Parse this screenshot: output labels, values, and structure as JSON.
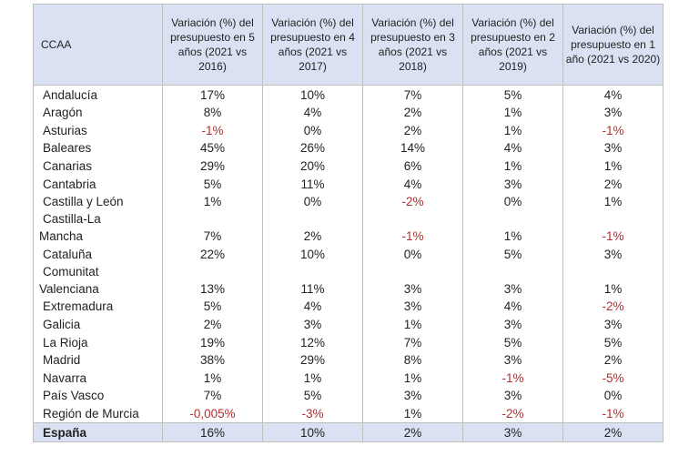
{
  "table": {
    "headers": [
      "CCAA",
      "Variación (%) del presupuesto en 5 años (2021 vs 2016)",
      "Variación (%) del presupuesto en 4 años (2021 vs 2017)",
      "Variación (%) del presupuesto en 3 años (2021 vs 2018)",
      "Variación (%) del presupuesto en 2 años (2021 vs 2019)",
      "Variación (%) del presupuesto en 1 año (2021 vs 2020)"
    ],
    "rows": [
      {
        "name": "Andalucía",
        "values": [
          "17%",
          "10%",
          "7%",
          "5%",
          "4%"
        ]
      },
      {
        "name": "Aragón",
        "values": [
          "8%",
          "4%",
          "2%",
          "1%",
          "3%"
        ]
      },
      {
        "name": "Asturias",
        "values": [
          "-1%",
          "0%",
          "2%",
          "1%",
          "-1%"
        ]
      },
      {
        "name": "Baleares",
        "values": [
          "45%",
          "26%",
          "14%",
          "4%",
          "3%"
        ]
      },
      {
        "name": "Canarias",
        "values": [
          "29%",
          "20%",
          "6%",
          "1%",
          "1%"
        ]
      },
      {
        "name": "Cantabria",
        "values": [
          "5%",
          "11%",
          "4%",
          "3%",
          "2%"
        ]
      },
      {
        "name": "Castilla y León",
        "values": [
          "1%",
          "0%",
          "-2%",
          "0%",
          "1%"
        ]
      },
      {
        "name_line1": "Castilla-La",
        "name_line2": "Mancha",
        "values": [
          "7%",
          "2%",
          "-1%",
          "1%",
          "-1%"
        ]
      },
      {
        "name": "Cataluña",
        "values": [
          "22%",
          "10%",
          "0%",
          "5%",
          "3%"
        ]
      },
      {
        "name_line1": "Comunitat",
        "name_line2": "Valenciana",
        "values": [
          "13%",
          "11%",
          "3%",
          "3%",
          "1%"
        ]
      },
      {
        "name": "Extremadura",
        "values": [
          "5%",
          "4%",
          "3%",
          "4%",
          "-2%"
        ]
      },
      {
        "name": "Galicia",
        "values": [
          "2%",
          "3%",
          "1%",
          "3%",
          "3%"
        ]
      },
      {
        "name": "La Rioja",
        "values": [
          "19%",
          "12%",
          "7%",
          "5%",
          "5%"
        ]
      },
      {
        "name": "Madrid",
        "values": [
          "38%",
          "29%",
          "8%",
          "3%",
          "2%"
        ]
      },
      {
        "name": "Navarra",
        "values": [
          "1%",
          "1%",
          "1%",
          "-1%",
          "-5%"
        ]
      },
      {
        "name": "País Vasco",
        "values": [
          "7%",
          "5%",
          "3%",
          "3%",
          "0%"
        ]
      },
      {
        "name": "Región de Murcia",
        "values": [
          "-0,005%",
          "-3%",
          "1%",
          "-2%",
          "-1%"
        ]
      }
    ],
    "total": {
      "name": "España",
      "values": [
        "16%",
        "10%",
        "2%",
        "3%",
        "2%"
      ]
    },
    "highlight_colors": {
      "negative": "#b03030",
      "header_bg": "#d9e1f2"
    }
  }
}
